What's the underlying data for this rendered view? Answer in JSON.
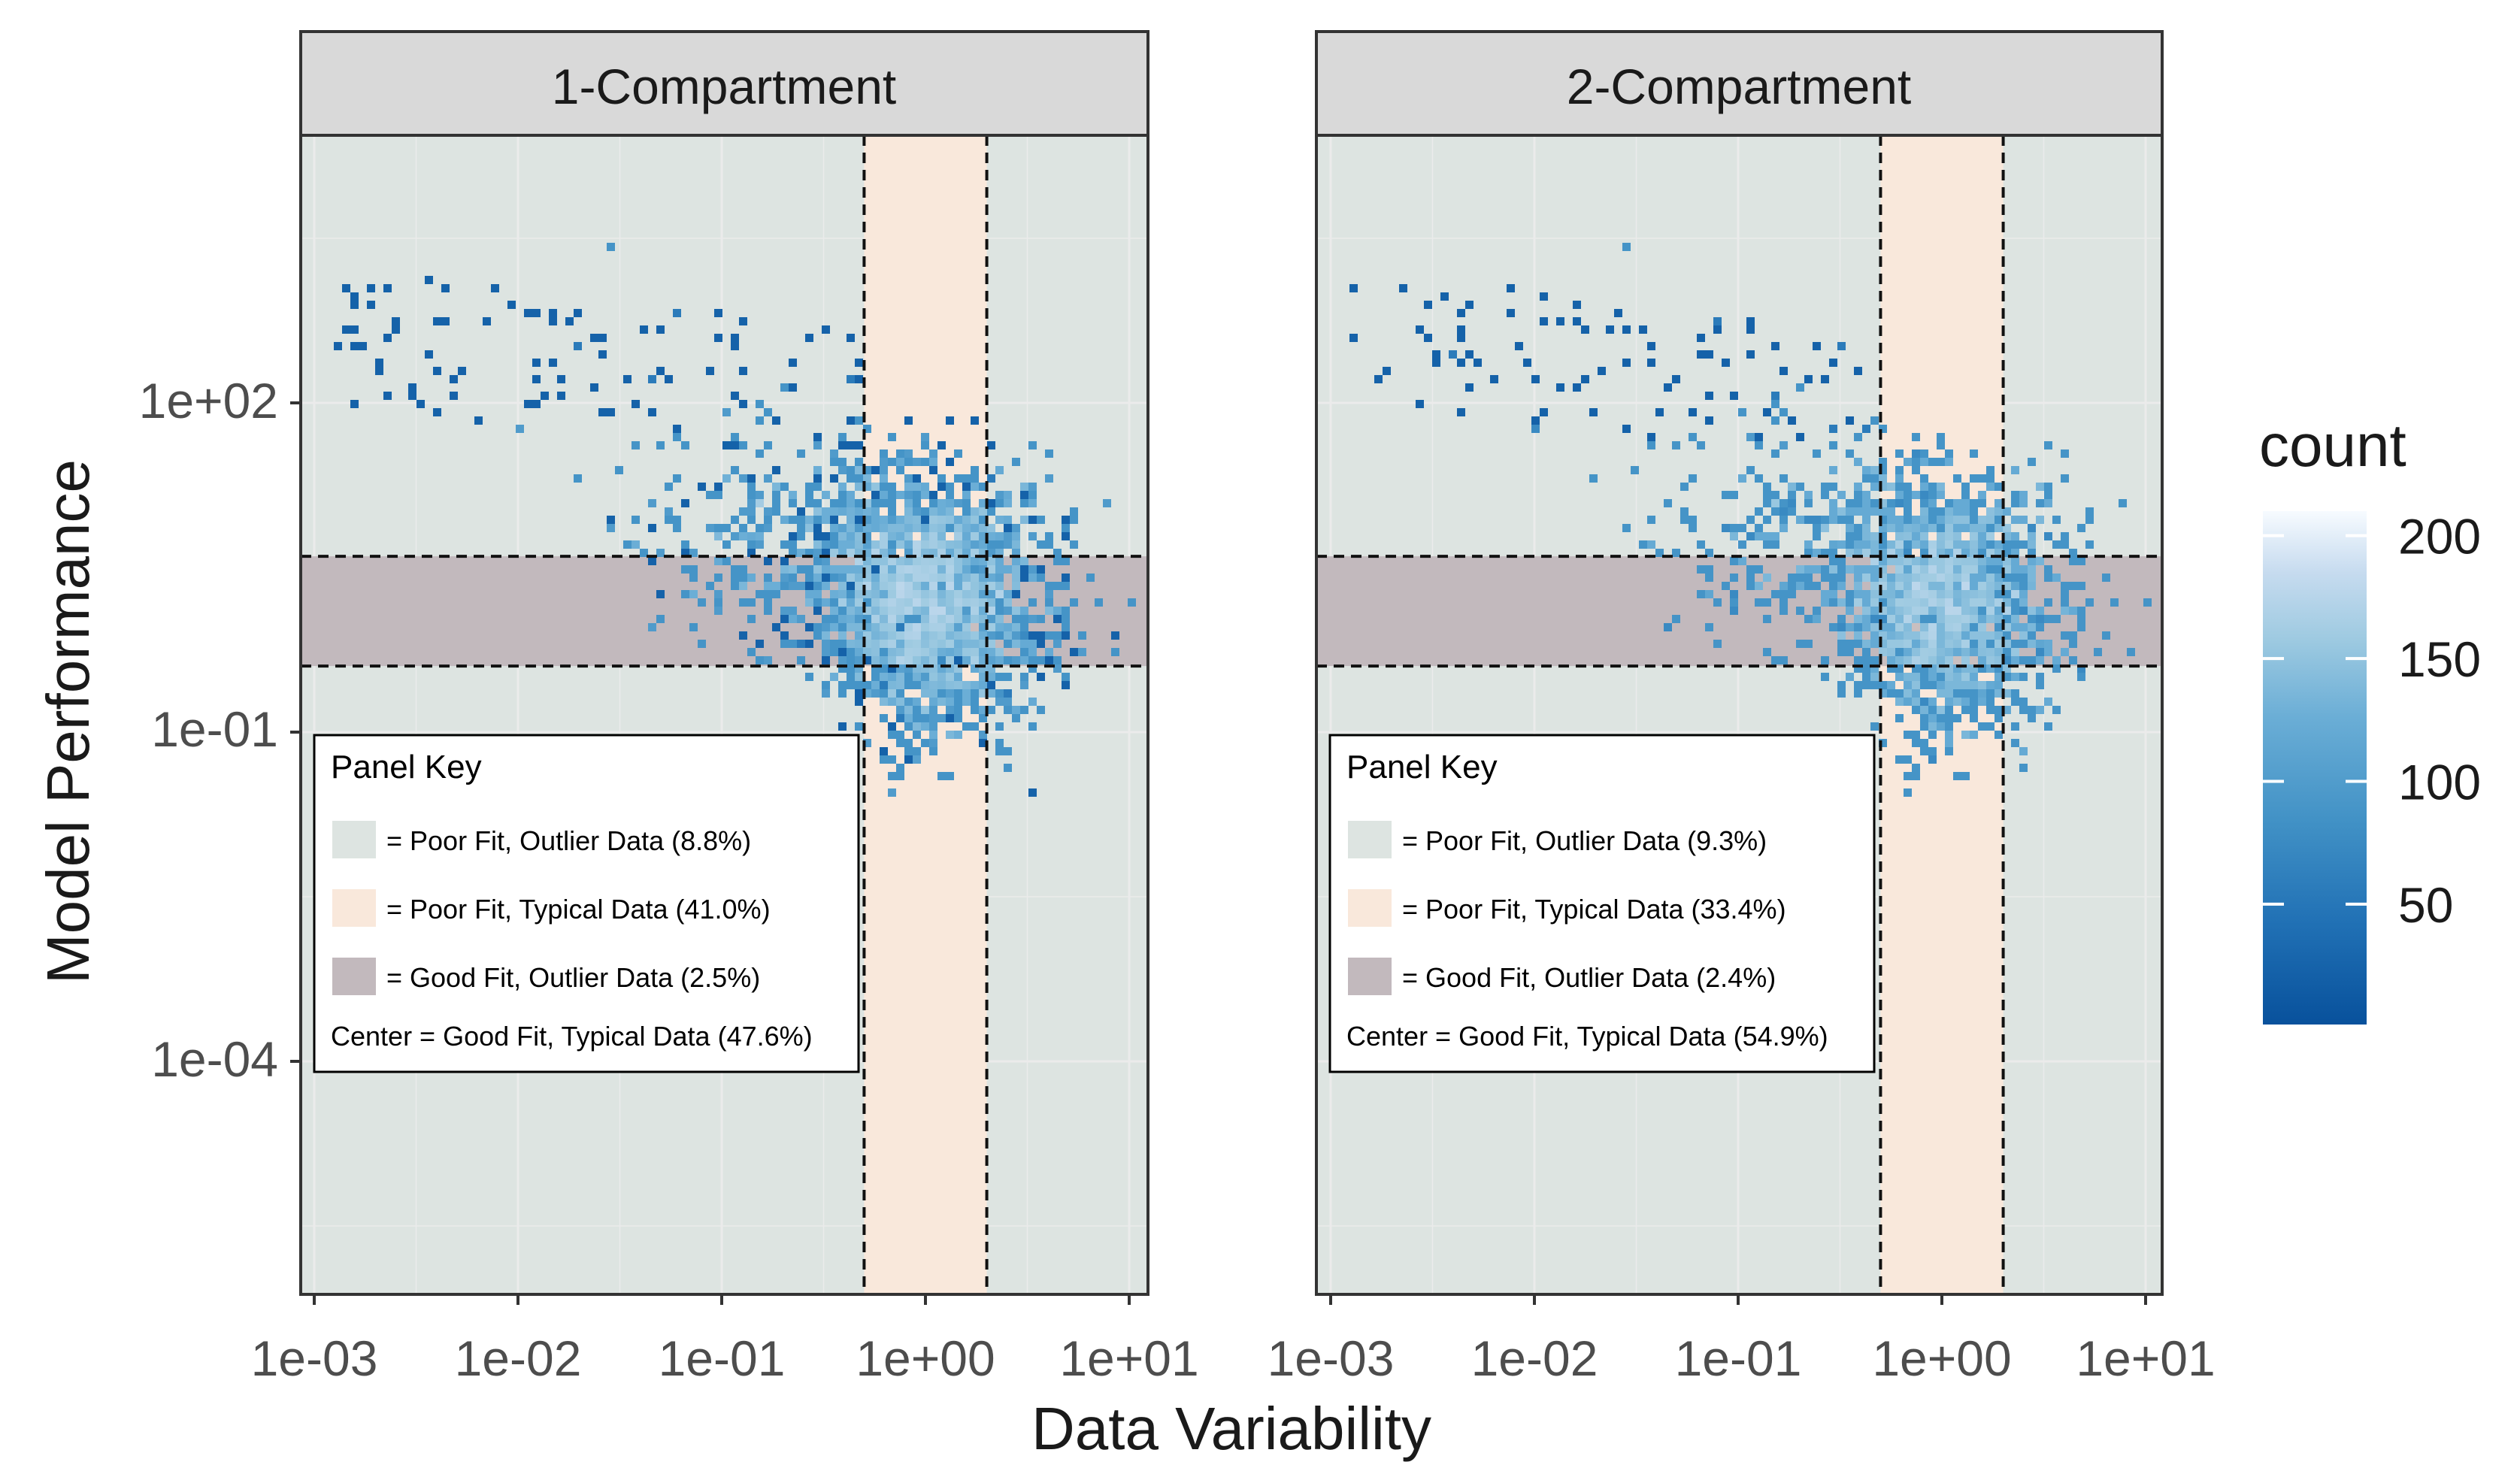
{
  "figure": {
    "y_axis_label": "Model Performance",
    "x_axis_label": "Data Variability"
  },
  "legend": {
    "title": "count",
    "ticks": [
      50,
      100,
      150,
      200
    ],
    "colors": [
      "#08519c",
      "#2171b5",
      "#4292c6",
      "#6baed6",
      "#9ecae1",
      "#c6dbef",
      "#f7fbff"
    ],
    "range": [
      1,
      210
    ]
  },
  "colors": {
    "poor_fit_outlier": "#dde4e1",
    "poor_fit_typical": "#f9e8db",
    "good_fit_outlier": "#c2b9bd",
    "panel_strip": "#d9d9d9",
    "gridline": "#ebebeb"
  },
  "chart_data": [
    {
      "type": "heatmap",
      "title": "1-Compartment",
      "xlabel": "Data Variability",
      "ylabel": "Model Performance",
      "xscale": "log10",
      "yscale": "log10",
      "xlim": [
        0.0008,
        13
      ],
      "ylim": [
        3e-06,
        600000
      ],
      "x_ticks": [
        "1e-03",
        "1e-02",
        "1e-01",
        "1e+00",
        "1e+01"
      ],
      "x_tick_values": [
        0.001,
        0.01,
        0.1,
        1,
        10
      ],
      "y_ticks": [
        "1e+02",
        "1e-01",
        "1e-04"
      ],
      "y_tick_values": [
        100,
        0.1,
        0.0001
      ],
      "typical_data_x_range": [
        0.5,
        2
      ],
      "good_fit_y_range": [
        0.4,
        4
      ],
      "density_center": {
        "x": 1.0,
        "y": 1.5
      },
      "grid": true,
      "key": {
        "title": "Panel Key",
        "items": [
          {
            "swatch": "poor_fit_outlier",
            "label": "= Poor Fit, Outlier Data (8.8%)"
          },
          {
            "swatch": "poor_fit_typical",
            "label": "= Poor Fit, Typical Data (41.0%)"
          },
          {
            "swatch": "good_fit_outlier",
            "label": "= Good Fit, Outlier Data (2.5%)"
          }
        ],
        "center": "Center = Good Fit, Typical Data (47.6%)"
      }
    },
    {
      "type": "heatmap",
      "title": "2-Compartment",
      "xlabel": "Data Variability",
      "ylabel": "Model Performance",
      "xscale": "log10",
      "yscale": "log10",
      "xlim": [
        0.0008,
        13
      ],
      "ylim": [
        3e-06,
        600000
      ],
      "x_ticks": [
        "1e-03",
        "1e-02",
        "1e-01",
        "1e+00",
        "1e+01"
      ],
      "x_tick_values": [
        0.001,
        0.01,
        0.1,
        1,
        10
      ],
      "y_ticks": [
        "1e+02",
        "1e-01",
        "1e-04"
      ],
      "y_tick_values": [
        100,
        0.1,
        0.0001
      ],
      "typical_data_x_range": [
        0.5,
        2
      ],
      "good_fit_y_range": [
        0.4,
        4
      ],
      "density_center": {
        "x": 1.0,
        "y": 1.5
      },
      "grid": true,
      "key": {
        "title": "Panel Key",
        "items": [
          {
            "swatch": "poor_fit_outlier",
            "label": "= Poor Fit, Outlier Data (9.3%)"
          },
          {
            "swatch": "poor_fit_typical",
            "label": "= Poor Fit, Typical Data (33.4%)"
          },
          {
            "swatch": "good_fit_outlier",
            "label": "= Good Fit, Outlier Data (2.4%)"
          }
        ],
        "center": "Center = Good Fit, Typical Data (54.9%)"
      }
    }
  ]
}
